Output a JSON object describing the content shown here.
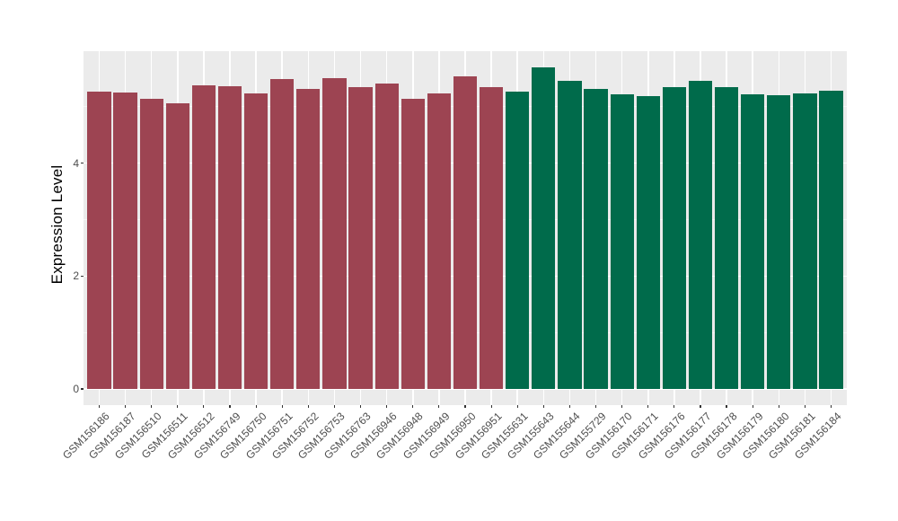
{
  "chart_data": {
    "type": "bar",
    "title": "",
    "xlabel": "",
    "ylabel": "Expression Level",
    "categories": [
      "GSM156186",
      "GSM156187",
      "GSM156510",
      "GSM156511",
      "GSM156512",
      "GSM156749",
      "GSM156750",
      "GSM156751",
      "GSM156752",
      "GSM156753",
      "GSM156763",
      "GSM156946",
      "GSM156948",
      "GSM156949",
      "GSM156950",
      "GSM156951",
      "GSM155631",
      "GSM155643",
      "GSM155644",
      "GSM155729",
      "GSM156170",
      "GSM156171",
      "GSM156176",
      "GSM156177",
      "GSM156178",
      "GSM156179",
      "GSM156180",
      "GSM156181",
      "GSM156184"
    ],
    "values": [
      5.27,
      5.25,
      5.13,
      5.06,
      5.38,
      5.36,
      5.24,
      5.48,
      5.32,
      5.5,
      5.34,
      5.41,
      5.14,
      5.23,
      5.54,
      5.34,
      5.27,
      5.7,
      5.46,
      5.32,
      5.22,
      5.18,
      5.34,
      5.46,
      5.35,
      5.21,
      5.2,
      5.23,
      5.28
    ],
    "bar_groups": [
      "red",
      "red",
      "red",
      "red",
      "red",
      "red",
      "red",
      "red",
      "red",
      "red",
      "red",
      "red",
      "red",
      "red",
      "red",
      "red",
      "green",
      "green",
      "green",
      "green",
      "green",
      "green",
      "green",
      "green",
      "green",
      "green",
      "green",
      "green",
      "green"
    ],
    "palette": {
      "red": "#9D4452",
      "green": "#006B4B"
    },
    "yticks": [
      0,
      2,
      4
    ],
    "yticks_minor": [
      1,
      3,
      5
    ],
    "ylim": [
      0,
      5.99
    ],
    "x_tick_rotation": 45,
    "grid": "on",
    "legend_position": "none",
    "colors": {
      "panel_background": "#EBEBEB",
      "gridline": "#FFFFFF",
      "page_background": "#FFFFFF",
      "tick_label": "#4D4D4D",
      "axis_title": "#000000"
    }
  }
}
